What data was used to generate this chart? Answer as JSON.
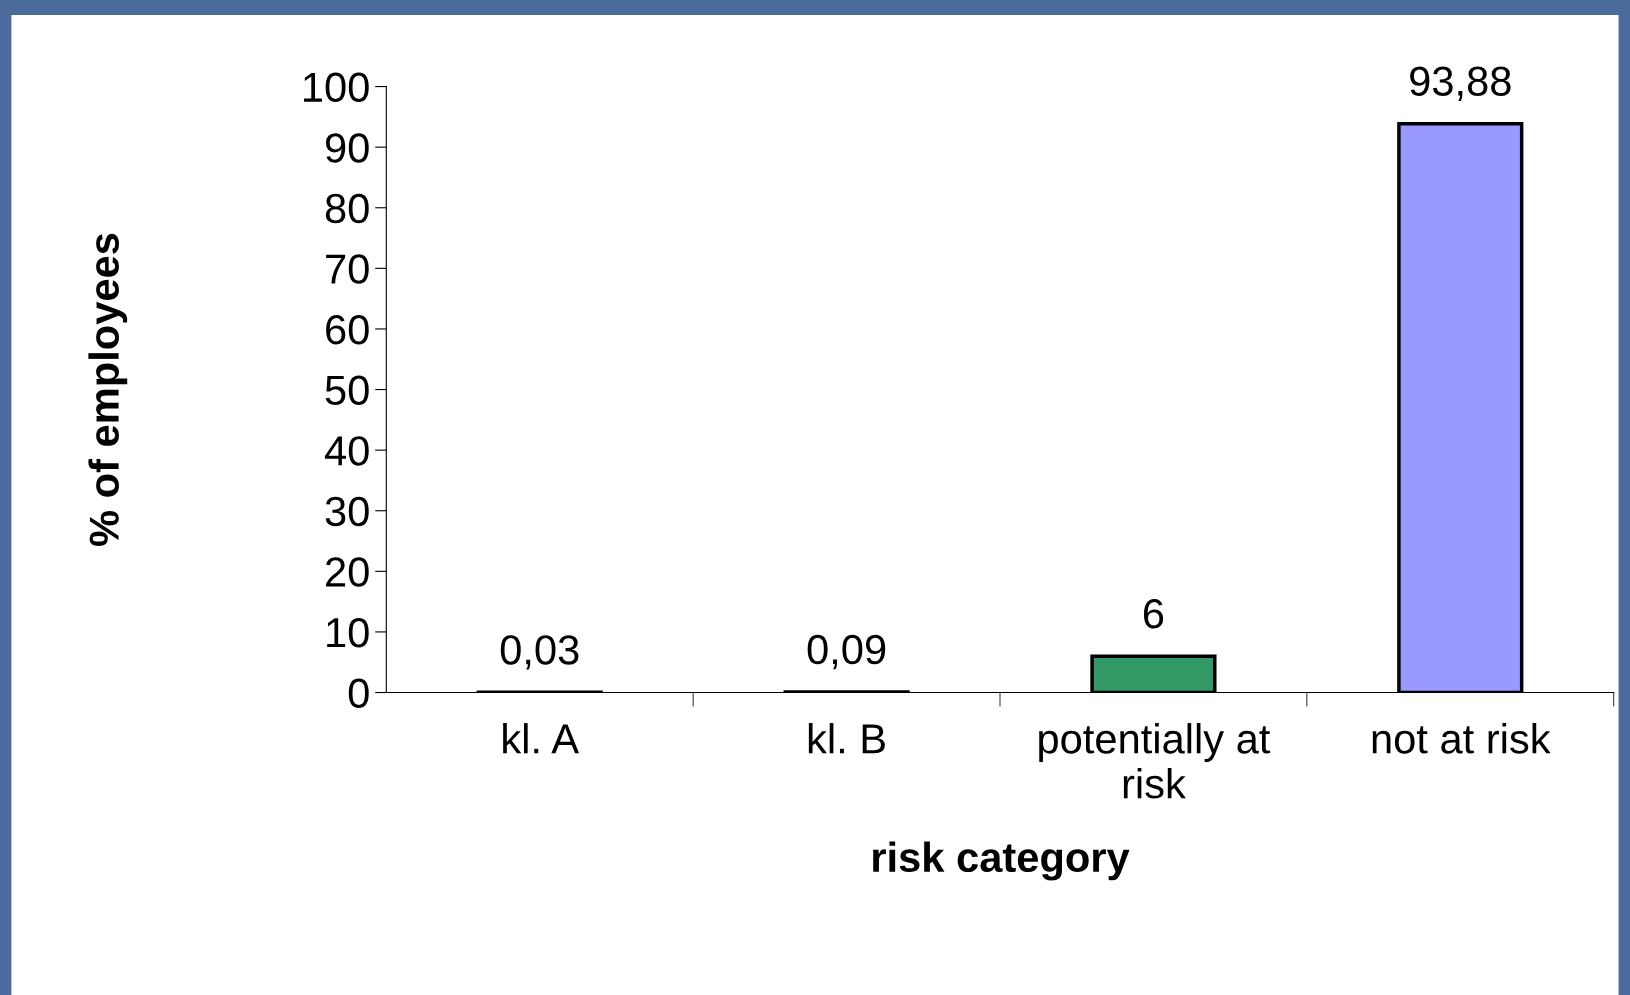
{
  "chart_data": {
    "type": "bar",
    "xlabel": "risk category",
    "ylabel": "% of employees",
    "categories": [
      "kl. A",
      "kl. B",
      "potentially at\nrisk",
      "not at risk"
    ],
    "values": [
      0.03,
      0.09,
      6,
      93.88
    ],
    "colors": [
      "#9999ff",
      "#9999ff",
      "#339966",
      "#9999ff"
    ],
    "value_labels": [
      "0,03",
      "0,09",
      "6",
      "93,88"
    ],
    "ylim": [
      0,
      100
    ],
    "yticks": [
      0,
      10,
      20,
      30,
      40,
      50,
      60,
      70,
      80,
      90,
      100
    ],
    "grid": false,
    "legend": false
  }
}
